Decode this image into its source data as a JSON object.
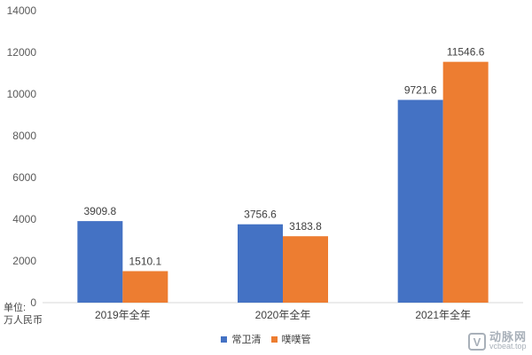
{
  "chart_data": {
    "type": "bar",
    "categories": [
      "2019年全年",
      "2020年全年",
      "2021年全年"
    ],
    "series": [
      {
        "name": "常卫清",
        "values": [
          3909.8,
          3756.6,
          9721.6
        ],
        "color": "#4472C4"
      },
      {
        "name": "噗噗管",
        "values": [
          1510.1,
          3183.8,
          11546.6
        ],
        "color": "#ED7D31"
      }
    ],
    "data_labels": [
      [
        "3909.8",
        "3756.6",
        "9721.6"
      ],
      [
        "1510.1",
        "3183.8",
        "11546.6"
      ]
    ],
    "yticks": [
      0,
      2000,
      4000,
      6000,
      8000,
      10000,
      12000,
      14000
    ],
    "ylim": [
      0,
      14000
    ],
    "unit_label": [
      "单位:",
      "万人民币"
    ],
    "legend_position": "bottom",
    "grid": false
  },
  "watermark": {
    "logo_glyph": "V",
    "name": "动脉网",
    "site": "vcbeat.top"
  }
}
